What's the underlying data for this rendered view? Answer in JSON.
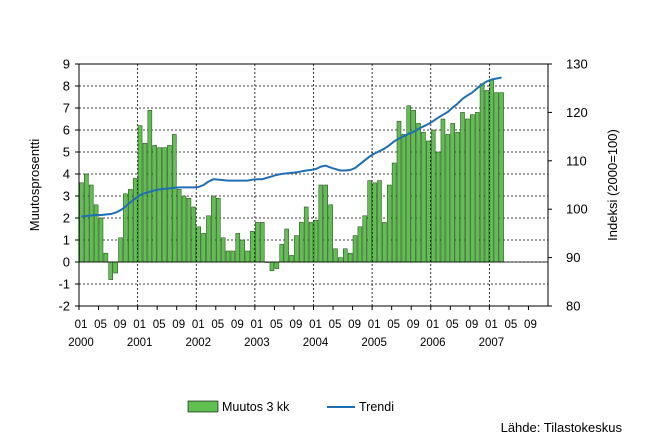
{
  "chart_data": {
    "type": "bar+line",
    "ylabel_left": "Muutosprosentti",
    "ylabel_right": "Indeksi (2000=100)",
    "ylim_left": [
      -2,
      9
    ],
    "ylim_right": [
      80,
      130
    ],
    "yticks_left": [
      "-2",
      "-1",
      "0",
      "1",
      "2",
      "3",
      "4",
      "5",
      "6",
      "7",
      "8",
      "9"
    ],
    "yticks_right": [
      "80",
      "90",
      "100",
      "110",
      "120",
      "130"
    ],
    "xtick_months": [
      "01",
      "05",
      "09",
      "01",
      "05",
      "09",
      "01",
      "05",
      "09",
      "01",
      "05",
      "09",
      "01",
      "05",
      "09",
      "01",
      "05",
      "09",
      "01",
      "05",
      "09",
      "01",
      "05",
      "09"
    ],
    "xtick_years": [
      "2000",
      "2001",
      "2002",
      "2003",
      "2004",
      "2005",
      "2006",
      "2007"
    ],
    "x_start": "2000-01",
    "bar_color": "#5fbf4f",
    "line_color": "#1f6fb5",
    "grid": true,
    "legend_position": "bottom",
    "series": [
      {
        "name": "Muutos 3 kk",
        "type": "bar",
        "values": [
          3.6,
          4.0,
          3.5,
          2.6,
          2.0,
          0.4,
          -0.8,
          -0.5,
          1.1,
          3.1,
          3.3,
          3.8,
          6.2,
          5.4,
          6.9,
          5.3,
          5.2,
          5.2,
          5.3,
          5.8,
          3.3,
          3.0,
          2.9,
          2.5,
          1.6,
          1.3,
          2.1,
          3.0,
          2.9,
          1.1,
          0.5,
          0.5,
          1.3,
          1.0,
          0.5,
          1.4,
          1.8,
          1.8,
          0.0,
          -0.4,
          -0.3,
          0.8,
          1.5,
          0.3,
          1.2,
          1.8,
          2.5,
          1.8,
          1.9,
          3.5,
          3.5,
          2.6,
          0.6,
          0.2,
          0.6,
          0.4,
          1.2,
          1.6,
          2.1,
          3.7,
          3.6,
          3.7,
          1.8,
          3.5,
          4.5,
          6.4,
          5.8,
          7.1,
          6.9,
          6.3,
          5.9,
          5.5,
          6.0,
          5.0,
          6.5,
          5.8,
          6.3,
          5.9,
          6.8,
          6.5,
          6.7,
          6.8,
          8.1,
          7.8,
          8.3,
          7.7,
          7.7
        ]
      },
      {
        "name": "Trendi",
        "type": "line",
        "values": [
          98.5,
          98.6,
          98.7,
          98.8,
          98.8,
          98.9,
          99.0,
          99.3,
          99.8,
          100.5,
          101.4,
          102.2,
          102.9,
          103.3,
          103.6,
          103.9,
          104.1,
          104.2,
          104.3,
          104.4,
          104.5,
          104.5,
          104.5,
          104.5,
          104.6,
          105.0,
          105.7,
          106.2,
          106.1,
          106.0,
          105.9,
          105.9,
          105.9,
          105.9,
          105.9,
          106.1,
          106.2,
          106.2,
          106.5,
          106.8,
          107.1,
          107.3,
          107.4,
          107.5,
          107.6,
          107.8,
          108.0,
          108.1,
          108.3,
          108.8,
          109.0,
          108.6,
          108.3,
          108.0,
          108.0,
          108.1,
          108.5,
          109.3,
          110.1,
          110.9,
          111.5,
          112.0,
          112.5,
          113.2,
          114.0,
          114.6,
          115.1,
          115.6,
          116.0,
          116.6,
          117.1,
          117.6,
          118.2,
          118.9,
          119.5,
          120.1,
          121.0,
          121.8,
          122.8,
          123.5,
          124.1,
          125.0,
          125.8,
          126.4,
          126.8,
          127.0,
          127.2
        ]
      }
    ],
    "source_label": "Lähde: Tilastokeskus"
  }
}
